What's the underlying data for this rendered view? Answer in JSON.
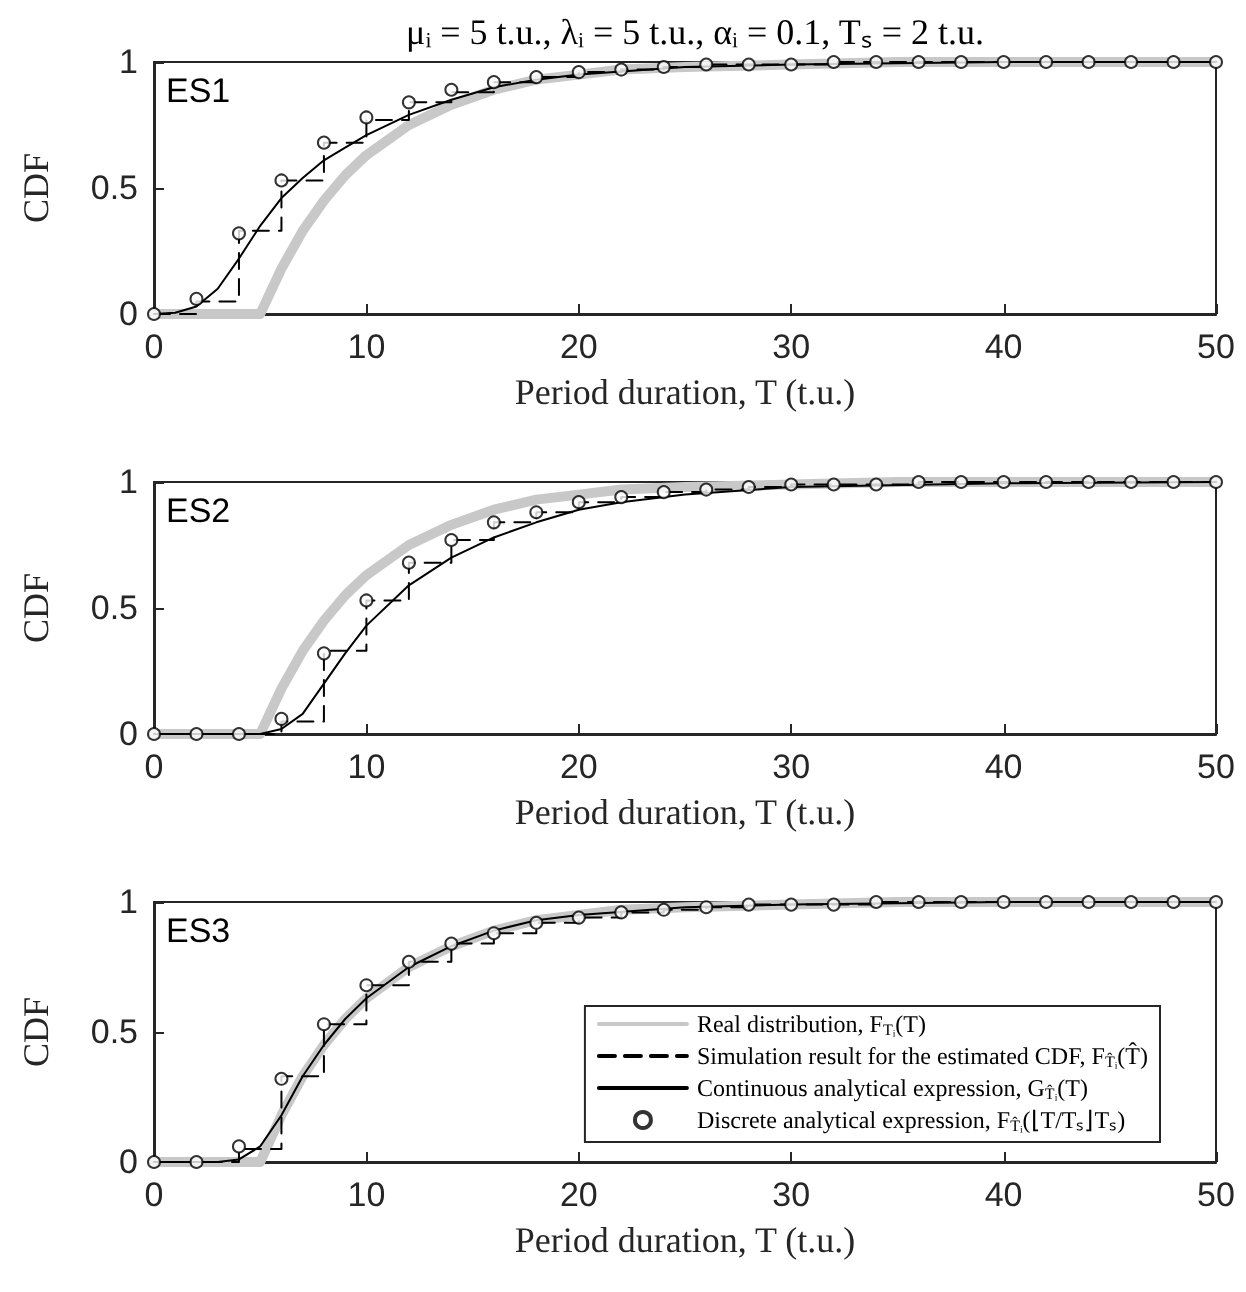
{
  "chart_data": [
    {
      "type": "line",
      "title": "μᵢ = 5 t.u., λᵢ = 5 t.u., αᵢ = 0.1, Tₛ = 2 t.u.",
      "xlabel": "Period duration, T (t.u.)",
      "ylabel": "CDF",
      "annotations": [
        "ES1"
      ],
      "x": [
        0,
        2,
        4,
        6,
        8,
        10,
        12,
        14,
        16,
        18,
        20,
        22,
        24,
        26,
        28,
        30,
        32,
        34,
        36,
        38,
        40,
        42,
        44,
        46,
        48,
        50
      ],
      "series": [
        {
          "type": "line",
          "color": "#c8c8c8",
          "line_style": "solid",
          "x": [
            0,
            5,
            6,
            7,
            8,
            9,
            10,
            12,
            14,
            16,
            18,
            20,
            22,
            25,
            30,
            35,
            40,
            50
          ],
          "values": [
            0,
            0,
            0.18,
            0.33,
            0.45,
            0.55,
            0.63,
            0.75,
            0.83,
            0.89,
            0.93,
            0.95,
            0.97,
            0.98,
            0.99,
            1,
            1,
            1
          ]
        },
        {
          "type": "step",
          "color": "#000000",
          "line_style": "dashed",
          "values": [
            0,
            0.05,
            0.33,
            0.53,
            0.68,
            0.77,
            0.84,
            0.88,
            0.92,
            0.94,
            0.96,
            0.97,
            0.98,
            0.99,
            0.99,
            0.99,
            1,
            1,
            1,
            1,
            1,
            1,
            1,
            1,
            1,
            1
          ]
        },
        {
          "type": "line",
          "color": "#000000",
          "line_style": "solid",
          "x": [
            0,
            1,
            2,
            3,
            4,
            5,
            6,
            7,
            8,
            9,
            10,
            12,
            14,
            16,
            18,
            20,
            25,
            30,
            40,
            50
          ],
          "values": [
            0,
            0.005,
            0.03,
            0.1,
            0.22,
            0.35,
            0.46,
            0.54,
            0.61,
            0.66,
            0.71,
            0.79,
            0.85,
            0.9,
            0.93,
            0.95,
            0.98,
            0.99,
            1,
            1
          ]
        },
        {
          "type": "scatter",
          "color": "#000000",
          "marker": "circle",
          "values": [
            0,
            0.06,
            0.32,
            0.53,
            0.68,
            0.78,
            0.84,
            0.89,
            0.92,
            0.94,
            0.96,
            0.97,
            0.98,
            0.99,
            0.99,
            0.99,
            1,
            1,
            1,
            1,
            1,
            1,
            1,
            1,
            1,
            1
          ]
        }
      ],
      "xlim": [
        0,
        50
      ],
      "xticks": [
        0,
        10,
        20,
        30,
        40,
        50
      ],
      "ylim": [
        0,
        1
      ],
      "yticks": [
        0,
        0.5,
        1
      ],
      "grid": false
    },
    {
      "type": "line",
      "xlabel": "Period duration, T (t.u.)",
      "ylabel": "CDF",
      "annotations": [
        "ES2"
      ],
      "x": [
        0,
        2,
        4,
        6,
        8,
        10,
        12,
        14,
        16,
        18,
        20,
        22,
        24,
        26,
        28,
        30,
        32,
        34,
        36,
        38,
        40,
        42,
        44,
        46,
        48,
        50
      ],
      "series": [
        {
          "type": "line",
          "color": "#c8c8c8",
          "line_style": "solid",
          "x": [
            0,
            5,
            6,
            7,
            8,
            9,
            10,
            12,
            14,
            16,
            18,
            20,
            22,
            25,
            30,
            35,
            40,
            50
          ],
          "values": [
            0,
            0,
            0.18,
            0.33,
            0.45,
            0.55,
            0.63,
            0.75,
            0.83,
            0.89,
            0.93,
            0.95,
            0.97,
            0.98,
            0.99,
            1,
            1,
            1
          ]
        },
        {
          "type": "step",
          "color": "#000000",
          "line_style": "dashed",
          "values": [
            0,
            0,
            0,
            0.05,
            0.33,
            0.53,
            0.68,
            0.77,
            0.84,
            0.88,
            0.92,
            0.94,
            0.96,
            0.97,
            0.98,
            0.99,
            0.99,
            0.99,
            1,
            1,
            1,
            1,
            1,
            1,
            1,
            1
          ]
        },
        {
          "type": "line",
          "color": "#000000",
          "line_style": "solid",
          "x": [
            0,
            5,
            6,
            7,
            8,
            9,
            10,
            12,
            14,
            16,
            18,
            20,
            22,
            25,
            30,
            40,
            50
          ],
          "values": [
            0,
            0,
            0.02,
            0.08,
            0.2,
            0.32,
            0.43,
            0.59,
            0.7,
            0.78,
            0.84,
            0.89,
            0.92,
            0.95,
            0.98,
            0.995,
            1
          ]
        },
        {
          "type": "scatter",
          "color": "#000000",
          "marker": "circle",
          "values": [
            0,
            0,
            0,
            0.06,
            0.32,
            0.53,
            0.68,
            0.77,
            0.84,
            0.88,
            0.92,
            0.94,
            0.96,
            0.97,
            0.98,
            0.99,
            0.99,
            0.99,
            1,
            1,
            1,
            1,
            1,
            1,
            1,
            1
          ]
        }
      ],
      "xlim": [
        0,
        50
      ],
      "xticks": [
        0,
        10,
        20,
        30,
        40,
        50
      ],
      "ylim": [
        0,
        1
      ],
      "yticks": [
        0,
        0.5,
        1
      ],
      "grid": false
    },
    {
      "type": "line",
      "xlabel": "Period duration, T (t.u.)",
      "ylabel": "CDF",
      "annotations": [
        "ES3"
      ],
      "x": [
        0,
        2,
        4,
        6,
        8,
        10,
        12,
        14,
        16,
        18,
        20,
        22,
        24,
        26,
        28,
        30,
        32,
        34,
        36,
        38,
        40,
        42,
        44,
        46,
        48,
        50
      ],
      "series": [
        {
          "type": "line",
          "name": "Real distribution, F$_{Tᵢ}$(T)",
          "color": "#c8c8c8",
          "line_style": "solid",
          "x": [
            0,
            5,
            6,
            7,
            8,
            9,
            10,
            12,
            14,
            16,
            18,
            20,
            22,
            25,
            30,
            35,
            40,
            50
          ],
          "values": [
            0,
            0,
            0.18,
            0.33,
            0.45,
            0.55,
            0.63,
            0.75,
            0.83,
            0.89,
            0.93,
            0.95,
            0.97,
            0.98,
            0.99,
            1,
            1,
            1
          ]
        },
        {
          "type": "step",
          "name": "Simulation result for the estimated CDF, F$_{T̂ᵢ}$(T̂)",
          "color": "#000000",
          "line_style": "dashed",
          "values": [
            0,
            0,
            0.05,
            0.33,
            0.53,
            0.68,
            0.77,
            0.84,
            0.88,
            0.92,
            0.94,
            0.96,
            0.97,
            0.98,
            0.99,
            0.99,
            0.99,
            1,
            1,
            1,
            1,
            1,
            1,
            1,
            1,
            1
          ]
        },
        {
          "type": "line",
          "name": "Continuous analytical expression, G$_{T̂ᵢ}$(T)",
          "color": "#000000",
          "line_style": "solid",
          "x": [
            0,
            3,
            4,
            5,
            6,
            7,
            8,
            9,
            10,
            12,
            14,
            16,
            18,
            20,
            25,
            30,
            40,
            50
          ],
          "values": [
            0,
            0,
            0.01,
            0.06,
            0.18,
            0.33,
            0.45,
            0.55,
            0.63,
            0.75,
            0.83,
            0.89,
            0.93,
            0.95,
            0.98,
            0.99,
            1,
            1
          ]
        },
        {
          "type": "scatter",
          "name": "Discrete analytical expression, F$_{T̂ᵢ}$(⌊T/Tₛ⌋Tₛ)",
          "color": "#000000",
          "marker": "circle",
          "values": [
            0,
            0,
            0.06,
            0.32,
            0.53,
            0.68,
            0.77,
            0.84,
            0.88,
            0.92,
            0.94,
            0.96,
            0.97,
            0.98,
            0.99,
            0.99,
            0.99,
            1,
            1,
            1,
            1,
            1,
            1,
            1,
            1,
            1
          ]
        }
      ],
      "xlim": [
        0,
        50
      ],
      "xticks": [
        0,
        10,
        20,
        30,
        40,
        50
      ],
      "ylim": [
        0,
        1
      ],
      "yticks": [
        0,
        0.5,
        1
      ],
      "grid": false,
      "legend": "bottom right"
    }
  ]
}
